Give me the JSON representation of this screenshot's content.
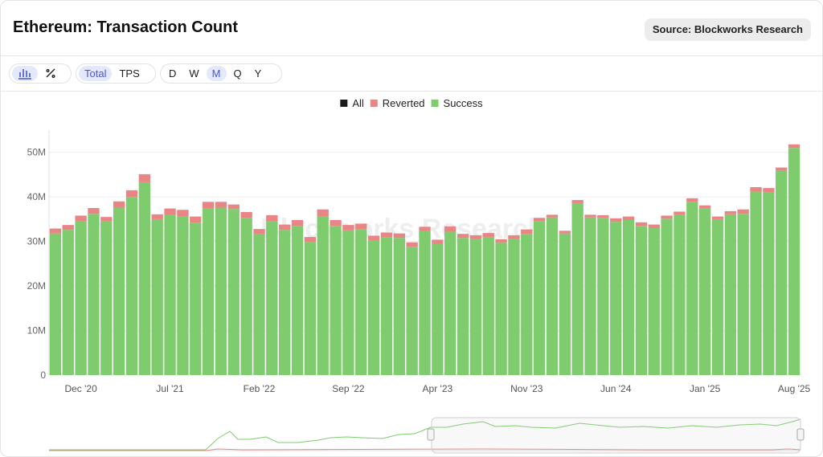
{
  "header": {
    "title": "Ethereum: Transaction Count",
    "source": "Source: Blockworks Research"
  },
  "toolbar": {
    "modes": [
      "Total",
      "TPS"
    ],
    "intervals": [
      "D",
      "W",
      "M",
      "Q",
      "Y"
    ]
  },
  "chart_data": {
    "type": "stacked-bar",
    "watermark": "Blockworks Research",
    "categories": [
      null,
      null,
      "Dec '20",
      null,
      null,
      null,
      null,
      null,
      null,
      "Jul '21",
      null,
      null,
      null,
      null,
      null,
      null,
      "Feb '22",
      null,
      null,
      null,
      null,
      null,
      null,
      "Sep '22",
      null,
      null,
      null,
      null,
      null,
      null,
      "Apr '23",
      null,
      null,
      null,
      null,
      null,
      null,
      "Nov '23",
      null,
      null,
      null,
      null,
      null,
      null,
      "Jun '24",
      null,
      null,
      null,
      null,
      null,
      null,
      "Jan '25",
      null,
      null,
      null,
      null,
      null,
      null,
      "Aug '25"
    ],
    "series": [
      {
        "name": "All",
        "color": "#1a1a1a",
        "hidden": true
      },
      {
        "name": "Reverted",
        "color": "#e98585",
        "values": [
          1100000,
          1100000,
          1300000,
          1300000,
          1000000,
          1400000,
          1500000,
          1800000,
          1100000,
          1500000,
          1500000,
          1400000,
          1400000,
          1300000,
          1000000,
          1300000,
          1200000,
          1400000,
          1200000,
          1300000,
          1200000,
          1600000,
          1300000,
          1200000,
          1200000,
          1000000,
          1000000,
          1000000,
          1000000,
          1000000,
          1000000,
          1200000,
          900000,
          900000,
          900000,
          800000,
          900000,
          1000000,
          700000,
          600000,
          600000,
          700000,
          600000,
          600000,
          800000,
          800000,
          800000,
          800000,
          700000,
          700000,
          800000,
          700000,
          600000,
          700000,
          1000000,
          1000000,
          1000000,
          700000,
          800000
        ]
      },
      {
        "name": "Success",
        "color": "#7fcc6f",
        "values": [
          31800000,
          32600000,
          34500000,
          36200000,
          34500000,
          37600000,
          40000000,
          43300000,
          35000000,
          35900000,
          35600000,
          34200000,
          37500000,
          37600000,
          37300000,
          35300000,
          31600000,
          34500000,
          32600000,
          33500000,
          29800000,
          35600000,
          33500000,
          32500000,
          32800000,
          30300000,
          31000000,
          30800000,
          28800000,
          32300000,
          29400000,
          32200000,
          30800000,
          30500000,
          31000000,
          29700000,
          30500000,
          31700000,
          34600000,
          35400000,
          31800000,
          38600000,
          35400000,
          35300000,
          34400000,
          34800000,
          33500000,
          33000000,
          35100000,
          36000000,
          38900000,
          37400000,
          35000000,
          36100000,
          36200000,
          41200000,
          41000000,
          45900000,
          51000000
        ]
      }
    ],
    "ylim": [
      0,
      55000000
    ],
    "yticks": [
      0,
      {
        "value": 10000000,
        "label": "10M"
      },
      {
        "value": 20000000,
        "label": "20M"
      },
      {
        "value": 30000000,
        "label": "30M"
      },
      {
        "value": 40000000,
        "label": "40M"
      },
      {
        "value": 50000000,
        "label": "50M"
      }
    ],
    "grid": true
  }
}
